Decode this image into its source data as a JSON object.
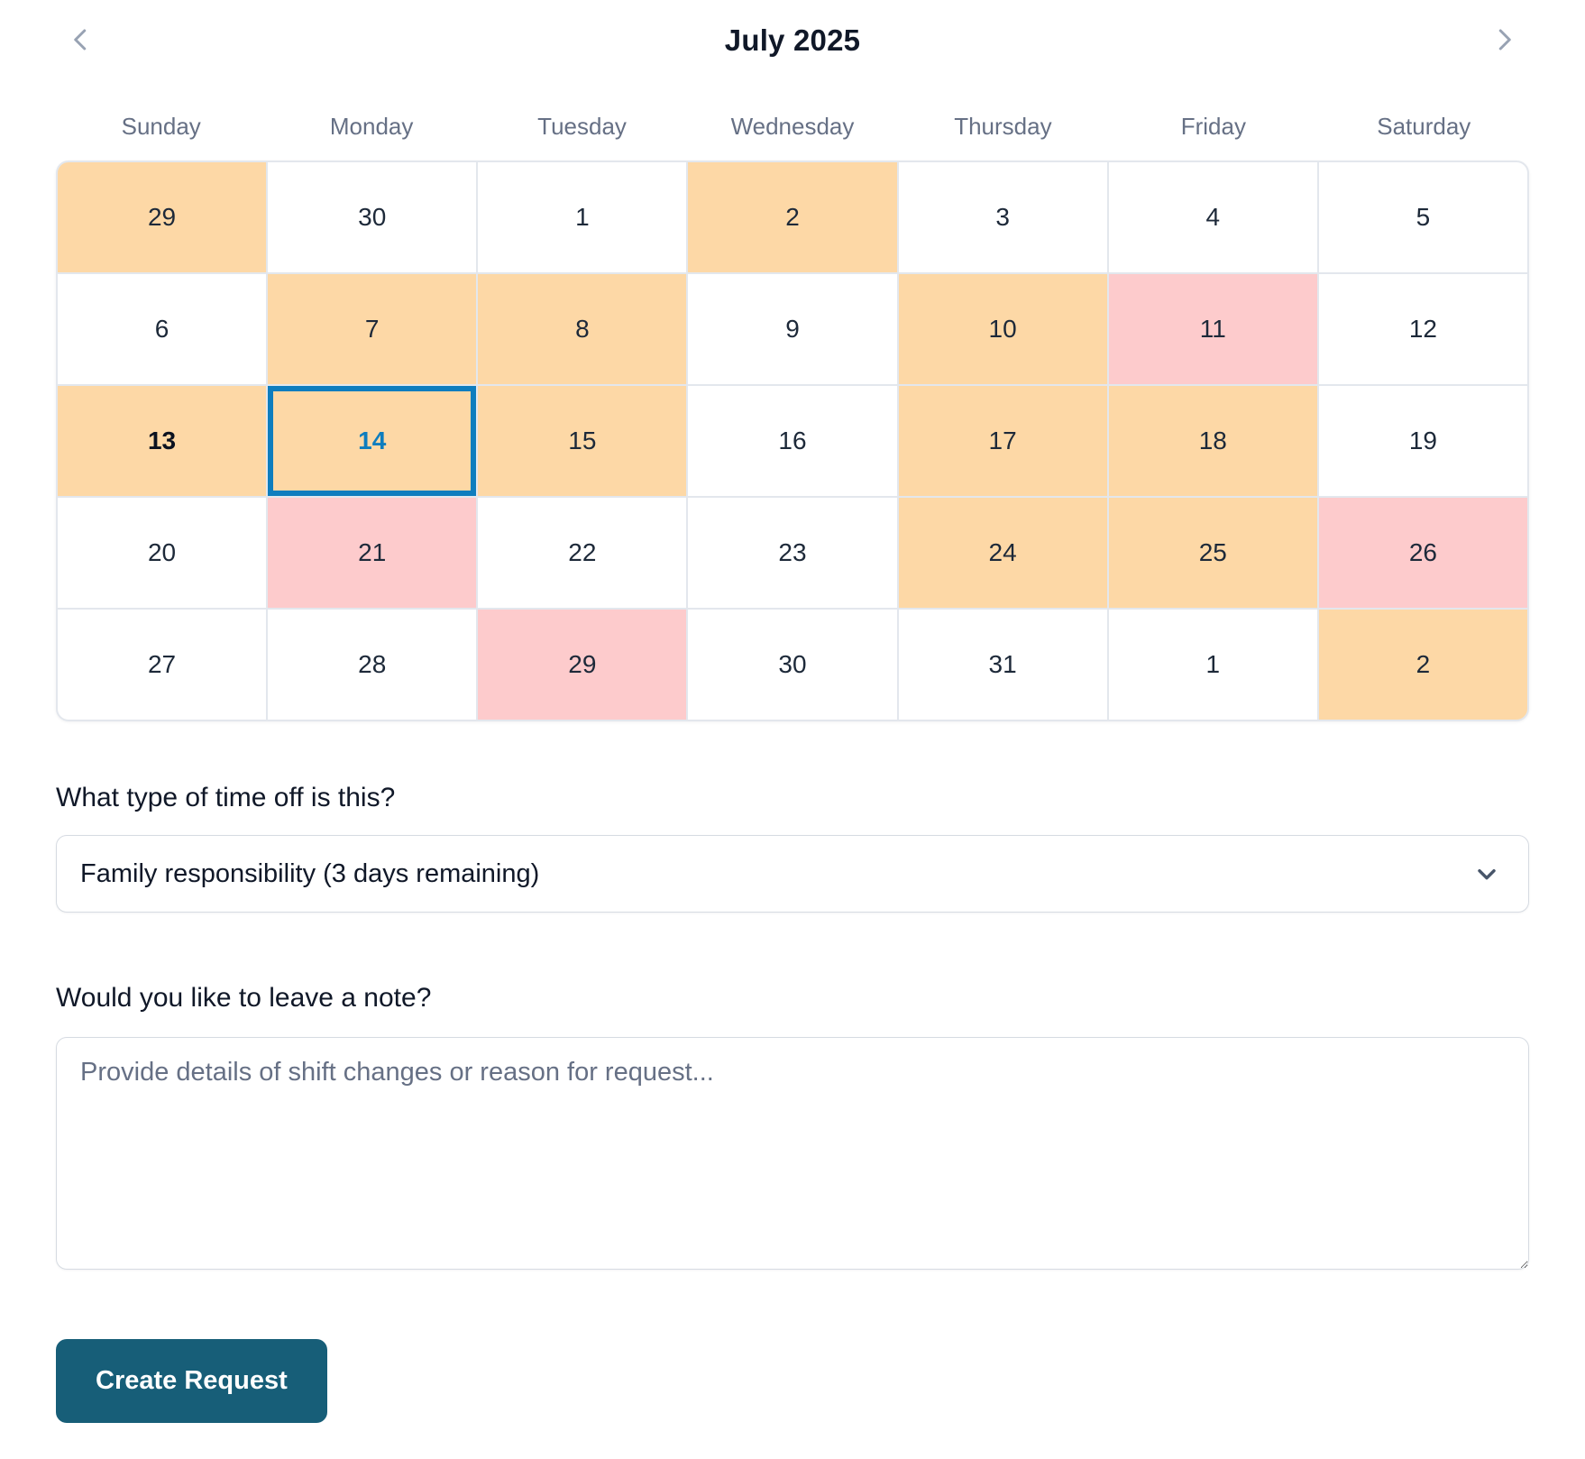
{
  "header": {
    "title": "July 2025",
    "prev_icon": "chevron-left",
    "next_icon": "chevron-right"
  },
  "calendar": {
    "day_headers": [
      "Sunday",
      "Monday",
      "Tuesday",
      "Wednesday",
      "Thursday",
      "Friday",
      "Saturday"
    ],
    "selected_day": "14",
    "cells": [
      {
        "day": "29",
        "highlight": "orange"
      },
      {
        "day": "30",
        "highlight": "none"
      },
      {
        "day": "1",
        "highlight": "none"
      },
      {
        "day": "2",
        "highlight": "orange"
      },
      {
        "day": "3",
        "highlight": "none"
      },
      {
        "day": "4",
        "highlight": "none"
      },
      {
        "day": "5",
        "highlight": "none"
      },
      {
        "day": "6",
        "highlight": "none"
      },
      {
        "day": "7",
        "highlight": "orange"
      },
      {
        "day": "8",
        "highlight": "orange"
      },
      {
        "day": "9",
        "highlight": "none"
      },
      {
        "day": "10",
        "highlight": "orange"
      },
      {
        "day": "11",
        "highlight": "pink"
      },
      {
        "day": "12",
        "highlight": "none"
      },
      {
        "day": "13",
        "highlight": "orange",
        "today": true
      },
      {
        "day": "14",
        "highlight": "orange",
        "selected": true
      },
      {
        "day": "15",
        "highlight": "orange"
      },
      {
        "day": "16",
        "highlight": "none"
      },
      {
        "day": "17",
        "highlight": "orange"
      },
      {
        "day": "18",
        "highlight": "orange"
      },
      {
        "day": "19",
        "highlight": "none"
      },
      {
        "day": "20",
        "highlight": "none"
      },
      {
        "day": "21",
        "highlight": "pink"
      },
      {
        "day": "22",
        "highlight": "none"
      },
      {
        "day": "23",
        "highlight": "none"
      },
      {
        "day": "24",
        "highlight": "orange"
      },
      {
        "day": "25",
        "highlight": "orange"
      },
      {
        "day": "26",
        "highlight": "pink"
      },
      {
        "day": "27",
        "highlight": "none"
      },
      {
        "day": "28",
        "highlight": "none"
      },
      {
        "day": "29",
        "highlight": "pink"
      },
      {
        "day": "30",
        "highlight": "none"
      },
      {
        "day": "31",
        "highlight": "none"
      },
      {
        "day": "1",
        "highlight": "none"
      },
      {
        "day": "2",
        "highlight": "orange"
      }
    ]
  },
  "time_off": {
    "label": "What type of time off is this?",
    "value": "Family responsibility (3 days remaining)",
    "chevron_icon": "chevron-down"
  },
  "note": {
    "label": "Would you like to leave a note?",
    "placeholder": "Provide details of shift changes or reason for request..."
  },
  "actions": {
    "create_label": "Create Request"
  },
  "colors": {
    "orange": "#FDD8A6",
    "pink": "#FDCBCC",
    "selected": "#0E7DBE",
    "button": "#175E78"
  }
}
